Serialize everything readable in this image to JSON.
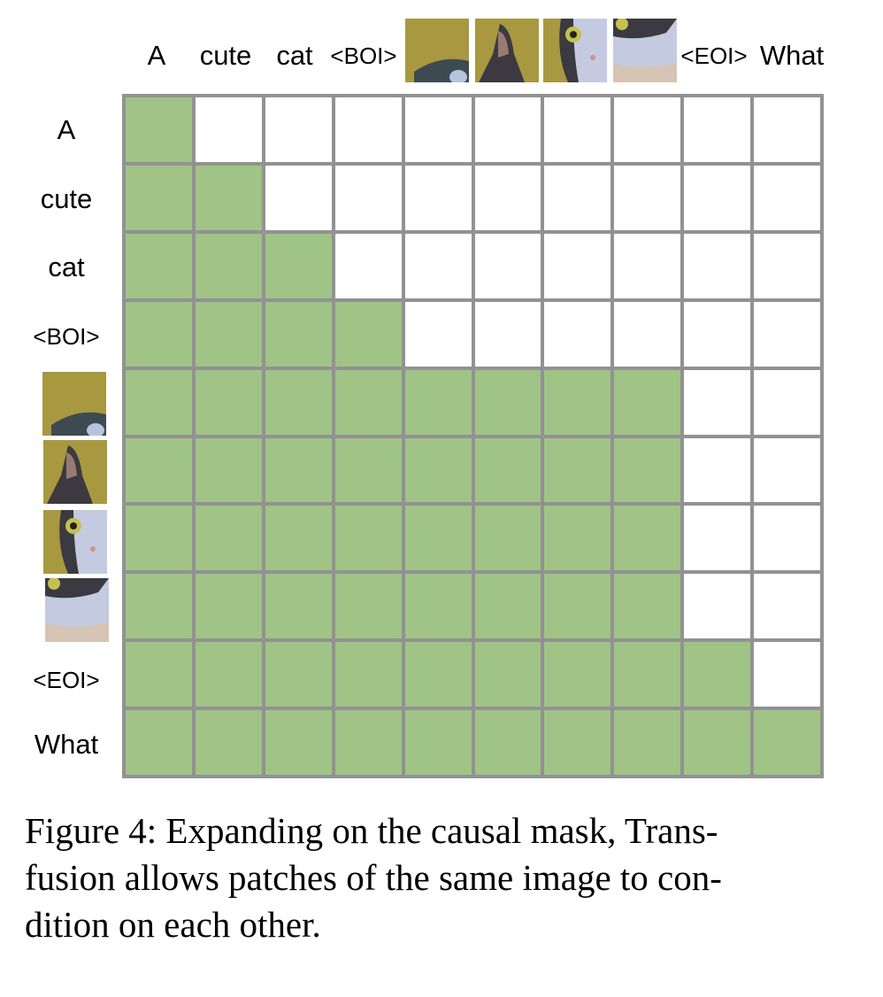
{
  "tokens": [
    "A",
    "cute",
    "cat",
    "<BOI>",
    "[image patch 1]",
    "[image patch 2]",
    "[image patch 3]",
    "[image patch 4]",
    "<EOI>",
    "What"
  ],
  "columns": [
    {
      "label": "A",
      "type": "text"
    },
    {
      "label": "cute",
      "type": "text"
    },
    {
      "label": "cat",
      "type": "text"
    },
    {
      "label": "<BOI>",
      "type": "text"
    },
    {
      "label": "",
      "type": "image",
      "desc": "cat patch: ear top-left"
    },
    {
      "label": "",
      "type": "image",
      "desc": "cat patch: ear"
    },
    {
      "label": "",
      "type": "image",
      "desc": "cat patch: eye and nose"
    },
    {
      "label": "",
      "type": "image",
      "desc": "cat patch: cheek"
    },
    {
      "label": "<EOI>",
      "type": "text"
    },
    {
      "label": "What",
      "type": "text"
    }
  ],
  "rows": [
    {
      "label": "A",
      "type": "text"
    },
    {
      "label": "cute",
      "type": "text"
    },
    {
      "label": "cat",
      "type": "text"
    },
    {
      "label": "<BOI>",
      "type": "text"
    },
    {
      "label": "",
      "type": "image"
    },
    {
      "label": "",
      "type": "image"
    },
    {
      "label": "",
      "type": "image"
    },
    {
      "label": "",
      "type": "image"
    },
    {
      "label": "<EOI>",
      "type": "text"
    },
    {
      "label": "What",
      "type": "text"
    }
  ],
  "mask": [
    [
      1,
      0,
      0,
      0,
      0,
      0,
      0,
      0,
      0,
      0
    ],
    [
      1,
      1,
      0,
      0,
      0,
      0,
      0,
      0,
      0,
      0
    ],
    [
      1,
      1,
      1,
      0,
      0,
      0,
      0,
      0,
      0,
      0
    ],
    [
      1,
      1,
      1,
      1,
      0,
      0,
      0,
      0,
      0,
      0
    ],
    [
      1,
      1,
      1,
      1,
      1,
      1,
      1,
      1,
      0,
      0
    ],
    [
      1,
      1,
      1,
      1,
      1,
      1,
      1,
      1,
      0,
      0
    ],
    [
      1,
      1,
      1,
      1,
      1,
      1,
      1,
      1,
      0,
      0
    ],
    [
      1,
      1,
      1,
      1,
      1,
      1,
      1,
      1,
      0,
      0
    ],
    [
      1,
      1,
      1,
      1,
      1,
      1,
      1,
      1,
      1,
      0
    ],
    [
      1,
      1,
      1,
      1,
      1,
      1,
      1,
      1,
      1,
      1
    ]
  ],
  "colors": {
    "attend": "#a0c386",
    "masked": "#ffffff",
    "grid": "#929292"
  },
  "caption": "Figure 4: Expanding on the causal mask, Transfusion allows patches of the same image to condition on each other.",
  "caption_lines": [
    "Figure 4: Expanding on the causal mask, Trans-",
    "fusion allows patches of the same image to con-",
    "dition on each other."
  ]
}
